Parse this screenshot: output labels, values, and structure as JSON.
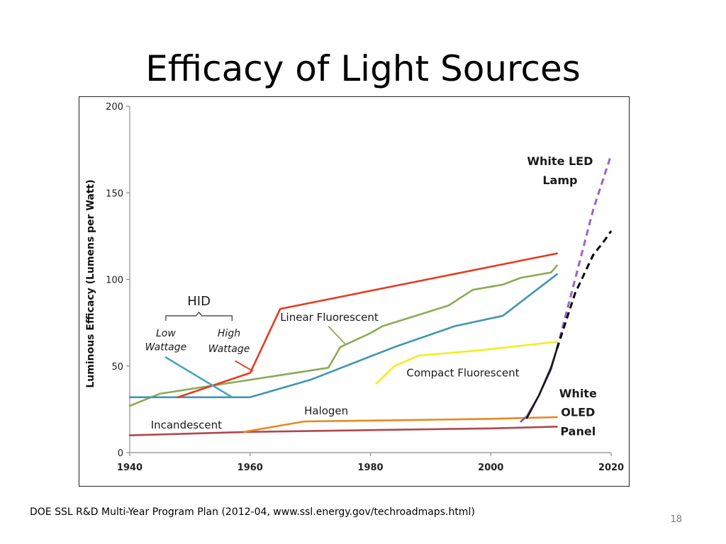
{
  "slide": {
    "title": "Efficacy of Light Sources",
    "source": "DOE SSL R&D Multi-Year Program Plan (2012-04, www.ssl.energy.gov/techroadmaps.html)",
    "page_number": "18"
  },
  "chart_data": {
    "type": "line",
    "title": "",
    "xlabel": "",
    "ylabel": "Luminous Efficacy (Lumens per Watt)",
    "xlim": [
      1940,
      2020
    ],
    "ylim": [
      0,
      200
    ],
    "x_ticks": [
      1940,
      1960,
      1980,
      2000,
      2020
    ],
    "y_ticks": [
      0,
      50,
      100,
      150,
      200
    ],
    "grid": false,
    "legend": "none",
    "series": [
      {
        "name": "Incandescent",
        "color": "#b0474a",
        "dashed": false,
        "points": [
          [
            1940,
            10
          ],
          [
            1960,
            12
          ],
          [
            1980,
            13
          ],
          [
            2000,
            14
          ],
          [
            2011,
            15
          ]
        ]
      },
      {
        "name": "Halogen",
        "color": "#e8891a",
        "dashed": false,
        "points": [
          [
            1959,
            12
          ],
          [
            1969,
            18
          ],
          [
            1980,
            18.5
          ],
          [
            2000,
            19.5
          ],
          [
            2011,
            20.5
          ]
        ]
      },
      {
        "name": "Linear Fluorescent",
        "color": "#8aab55",
        "dashed": false,
        "points": [
          [
            1940,
            27
          ],
          [
            1945,
            34
          ],
          [
            1973,
            49
          ],
          [
            1975,
            61
          ],
          [
            1980,
            69
          ],
          [
            1982,
            73
          ],
          [
            1993,
            85
          ],
          [
            1997,
            94
          ],
          [
            2002,
            97
          ],
          [
            2005,
            101
          ],
          [
            2010,
            104
          ],
          [
            2011,
            108
          ]
        ]
      },
      {
        "name": "",
        "color": "#3f96b2",
        "dashed": false,
        "points": [
          [
            1940,
            32
          ],
          [
            1960,
            32
          ],
          [
            1970,
            42
          ],
          [
            1984,
            61
          ],
          [
            1994,
            73
          ],
          [
            2002,
            79
          ],
          [
            2011,
            103
          ]
        ]
      },
      {
        "name": "",
        "color": "#e63b1f",
        "dashed": false,
        "points": [
          [
            1948,
            32
          ],
          [
            1960,
            46
          ],
          [
            1965,
            83
          ],
          [
            2011,
            115
          ]
        ]
      },
      {
        "name": "",
        "color": "#45a4c4",
        "dashed": false,
        "points": [
          [
            1946,
            55
          ],
          [
            1957,
            32
          ]
        ]
      },
      {
        "name": "Compact Fluorescent",
        "color": "#f5ec1e",
        "dashed": false,
        "points": [
          [
            1981,
            40
          ],
          [
            1984,
            50
          ],
          [
            1988,
            56
          ],
          [
            1998,
            59
          ],
          [
            2011,
            64
          ]
        ]
      },
      {
        "name": "White OLED Panel",
        "color": "#7a4aa8",
        "dashed": false,
        "points": [
          [
            2005,
            18
          ],
          [
            2006,
            21
          ],
          [
            2008,
            33
          ],
          [
            2010,
            48
          ],
          [
            2011,
            60
          ]
        ]
      },
      {
        "name": "",
        "color": "#1a1a1a",
        "dashed": false,
        "points": [
          [
            2006,
            20
          ],
          [
            2008,
            33
          ],
          [
            2010,
            49
          ],
          [
            2011,
            60
          ]
        ]
      },
      {
        "name": "White LED Lamp",
        "color": "#9a63c9",
        "dashed": true,
        "points": [
          [
            2011,
            60
          ],
          [
            2014,
            100
          ],
          [
            2017,
            140
          ],
          [
            2020,
            172
          ]
        ]
      },
      {
        "name": "",
        "color": "#000000",
        "dashed": true,
        "points": [
          [
            2011,
            60
          ],
          [
            2014,
            92
          ],
          [
            2017,
            114
          ],
          [
            2019,
            123
          ],
          [
            2020,
            128
          ]
        ]
      }
    ],
    "annotations": [
      {
        "id": "hid",
        "text": "HID",
        "x": 1951.5,
        "y": 85,
        "size": 18,
        "bold": false,
        "italic": false,
        "anchor": "middle"
      },
      {
        "id": "low",
        "text": "Low",
        "x": 1946,
        "y": 67,
        "size": 14,
        "italic": true,
        "anchor": "middle"
      },
      {
        "id": "wattage-low",
        "text": "Wattage",
        "x": 1946,
        "y": 59,
        "size": 14,
        "italic": true,
        "anchor": "middle"
      },
      {
        "id": "high",
        "text": "High",
        "x": 1956.5,
        "y": 67,
        "size": 14,
        "italic": true,
        "anchor": "middle"
      },
      {
        "id": "wattage-high",
        "text": "Wattage",
        "x": 1956.5,
        "y": 58,
        "size": 14,
        "italic": true,
        "anchor": "middle"
      },
      {
        "id": "linear-fluorescent",
        "text": "Linear Fluorescent",
        "x": 1965,
        "y": 76,
        "size": 15,
        "anchor": "start"
      },
      {
        "id": "compact-fluorescent",
        "text": "Compact Fluorescent",
        "x": 1986,
        "y": 44,
        "size": 15,
        "anchor": "start"
      },
      {
        "id": "halogen",
        "text": "Halogen",
        "x": 1969,
        "y": 22,
        "size": 15,
        "anchor": "start"
      },
      {
        "id": "incandescent",
        "text": "Incandescent",
        "x": 1943.5,
        "y": 14,
        "size": 15,
        "anchor": "start"
      },
      {
        "id": "white-led-1",
        "text": "White LED",
        "x": 2011.5,
        "y": 166,
        "size": 16,
        "bold": true,
        "anchor": "middle"
      },
      {
        "id": "white-led-2",
        "text": "Lamp",
        "x": 2011.5,
        "y": 155,
        "size": 16,
        "bold": true,
        "anchor": "middle"
      },
      {
        "id": "white-oled-1",
        "text": "White",
        "x": 2014.5,
        "y": 32,
        "size": 16,
        "bold": true,
        "anchor": "middle"
      },
      {
        "id": "white-oled-2",
        "text": "OLED",
        "x": 2014.5,
        "y": 21,
        "size": 16,
        "bold": true,
        "anchor": "middle"
      },
      {
        "id": "white-oled-3",
        "text": "Panel",
        "x": 2014.5,
        "y": 10,
        "size": 16,
        "bold": true,
        "anchor": "middle"
      }
    ],
    "callouts": [
      {
        "id": "linear-fluorescent-pointer",
        "color": "#8aab55",
        "from": [
          1973,
          73
        ],
        "to": [
          1976,
          62
        ]
      },
      {
        "id": "high-wattage-pointer",
        "color": "#e63b1f",
        "from": [
          1957.5,
          53
        ],
        "to": [
          1960.5,
          47
        ]
      }
    ],
    "brace": {
      "x1": 1946,
      "x2": 1957,
      "y_top": 79,
      "y_bottom": 76
    }
  }
}
